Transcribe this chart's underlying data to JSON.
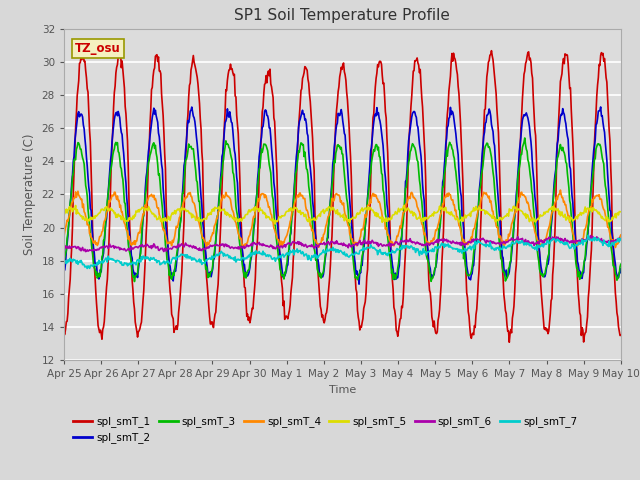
{
  "title": "SP1 Soil Temperature Profile",
  "xlabel": "Time",
  "ylabel": "Soil Temperature (C)",
  "ylim": [
    12,
    32
  ],
  "yticks": [
    12,
    14,
    16,
    18,
    20,
    22,
    24,
    26,
    28,
    30,
    32
  ],
  "fig_bg": "#d8d8d8",
  "ax_bg": "#dcdcdc",
  "tz_label": "TZ_osu",
  "series_colors": {
    "spl_smT_1": "#cc0000",
    "spl_smT_2": "#0000cc",
    "spl_smT_3": "#00bb00",
    "spl_smT_4": "#ff8800",
    "spl_smT_5": "#dddd00",
    "spl_smT_6": "#aa00aa",
    "spl_smT_7": "#00cccc"
  },
  "date_labels": [
    "Apr 25",
    "Apr 26",
    "Apr 27",
    "Apr 28",
    "Apr 29",
    "Apr 30",
    "May 1",
    "May 2",
    "May 3",
    "May 4",
    "May 5",
    "May 6",
    "May 7",
    "May 8",
    "May 9",
    "May 10"
  ],
  "n_days": 15,
  "points_per_day": 48
}
